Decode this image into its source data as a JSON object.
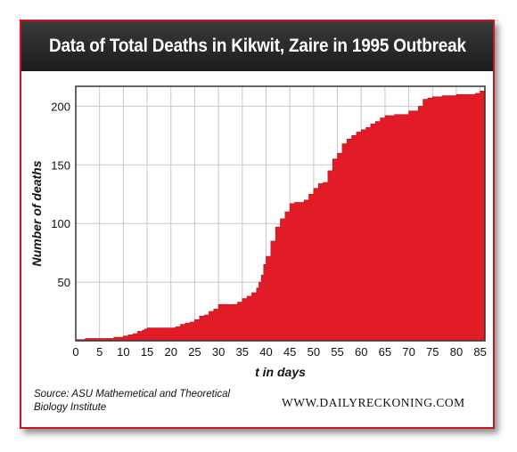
{
  "page": {
    "title": "Data of Total Deaths in Kikwit, Zaire in 1995 Outbreak",
    "source_line1": "Source: ASU Mathemetical and Theoretical",
    "source_line2": "Biology Institute",
    "brand": "WWW.DAILYRECKONING.COM"
  },
  "colors": {
    "area_fill": "#e21c26",
    "title_bar": "#262626",
    "grid": "#c8c8c8",
    "axis": "#333333"
  },
  "chart_data": {
    "type": "area",
    "title": "Data of Total Deaths in Kikwit, Zaire in 1995 Outbreak",
    "xlabel": "t in days",
    "ylabel": "Number of deaths",
    "xlim": [
      0,
      86
    ],
    "ylim": [
      0,
      217
    ],
    "xticks": [
      0,
      5,
      10,
      15,
      20,
      25,
      30,
      35,
      40,
      45,
      50,
      55,
      60,
      65,
      70,
      75,
      80,
      85
    ],
    "yticks": [
      50,
      100,
      150,
      200
    ],
    "grid": true,
    "step": true,
    "series": [
      {
        "x": [
          0,
          2,
          5,
          8,
          10,
          11,
          12,
          13,
          14,
          14.5,
          15,
          16,
          20,
          21,
          22,
          23,
          24,
          25,
          26,
          27,
          28,
          29,
          30,
          34,
          35,
          36,
          37,
          38,
          38.5,
          39,
          39.5,
          40,
          41,
          42,
          43,
          44,
          45,
          46,
          48,
          49,
          50,
          51,
          52,
          53,
          54,
          55,
          56,
          57,
          58,
          59,
          60,
          61,
          62,
          63,
          64,
          65,
          67,
          70,
          72,
          73,
          74,
          75,
          77,
          80,
          84,
          85,
          86
        ],
        "y": [
          1,
          2,
          2,
          3,
          4,
          5,
          6,
          8,
          9,
          10,
          11,
          11,
          11,
          12,
          14,
          15,
          16,
          18,
          21,
          22,
          25,
          27,
          31,
          33,
          36,
          38,
          41,
          45,
          50,
          56,
          65,
          72,
          85,
          97,
          104,
          110,
          117,
          118,
          120,
          125,
          130,
          134,
          135,
          145,
          155,
          160,
          168,
          172,
          175,
          178,
          180,
          182,
          185,
          187,
          190,
          192,
          193,
          196,
          200,
          206,
          207,
          208,
          209,
          210,
          211,
          213,
          213
        ]
      }
    ]
  }
}
